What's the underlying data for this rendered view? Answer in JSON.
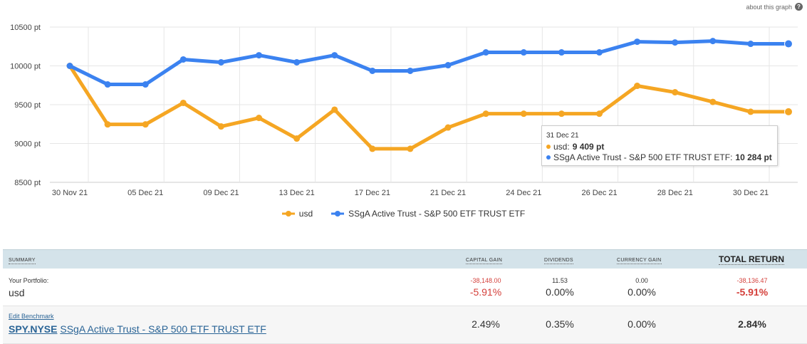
{
  "about_link": "about this graph",
  "help_icon": "?",
  "chart_data": {
    "type": "line",
    "y_unit": "pt",
    "ylim": [
      8500,
      10500
    ],
    "yticks": [
      8500,
      9000,
      9500,
      10000,
      10500
    ],
    "ytick_labels": [
      "8500 pt",
      "9000 pt",
      "9500 pt",
      "10000 pt",
      "10500 pt"
    ],
    "xtick_labels": [
      "30 Nov 21",
      "05 Dec 21",
      "09 Dec 21",
      "13 Dec 21",
      "17 Dec 21",
      "21 Dec 21",
      "24 Dec 21",
      "26 Dec 21",
      "28 Dec 21",
      "30 Dec 21"
    ],
    "grid": true,
    "legend_position": "bottom",
    "series": [
      {
        "name": "usd",
        "color": "#f5a623",
        "values": [
          10000,
          9246,
          9246,
          9523,
          9220,
          9330,
          9064,
          9436,
          8932,
          8932,
          9206,
          9384,
          9384,
          9384,
          9384,
          9743,
          9660,
          9536,
          9409,
          9409
        ]
      },
      {
        "name": "SSgA Active Trust - S&P 500 ETF TRUST ETF",
        "color": "#3b82f0",
        "values": [
          10000,
          9761,
          9761,
          10083,
          10046,
          10137,
          10046,
          10137,
          9936,
          9936,
          10009,
          10174,
          10174,
          10174,
          10174,
          10311,
          10302,
          10320,
          10284,
          10284
        ]
      }
    ]
  },
  "tooltip": {
    "date": "31 Dec 21",
    "row1_label": "usd:",
    "row1_value": "9 409 pt",
    "row2_label": "SSgA Active Trust - S&P 500 ETF TRUST ETF:",
    "row2_value": "10 284 pt"
  },
  "legend": [
    {
      "label": "usd",
      "color": "#f5a623"
    },
    {
      "label": "SSgA Active Trust - S&P 500 ETF TRUST ETF",
      "color": "#3b82f0"
    }
  ],
  "summary": {
    "headers": {
      "summary": "SUMMARY",
      "capital_gain": "CAPITAL GAIN",
      "dividends": "DIVIDENDS",
      "currency_gain": "CURRENCY GAIN",
      "total_return": "TOTAL RETURN"
    },
    "portfolio": {
      "label": "Your Portfolio:",
      "name": "usd",
      "capital_gain_abs": "-38,148.00",
      "capital_gain_pct": "-5.91%",
      "dividends_abs": "11.53",
      "dividends_pct": "0.00%",
      "currency_abs": "0.00",
      "currency_pct": "0.00%",
      "total_abs": "-38,136.47",
      "total_pct": "-5.91%"
    },
    "benchmark": {
      "edit_label": "Edit Benchmark",
      "ticker": "SPY.NYSE",
      "name": "SSgA Active Trust - S&P 500 ETF TRUST ETF",
      "capital_gain_pct": "2.49%",
      "dividends_pct": "0.35%",
      "currency_pct": "0.00%",
      "total_pct": "2.84%"
    }
  }
}
